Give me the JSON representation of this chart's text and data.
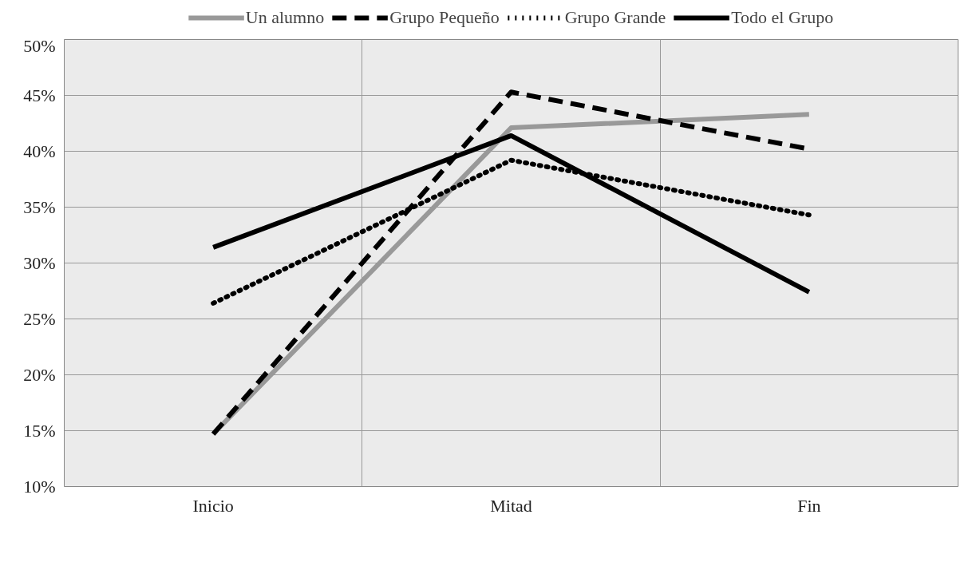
{
  "chart_data": {
    "type": "line",
    "categories": [
      "Inicio",
      "Mitad",
      "Fin"
    ],
    "series": [
      {
        "name": "Un alumno",
        "color": "#999999",
        "line_style": "solid",
        "values": [
          14.7,
          42.1,
          43.3
        ]
      },
      {
        "name": "Grupo Pequeño",
        "color": "#000000",
        "line_style": "dashed",
        "values": [
          14.7,
          45.3,
          40.2
        ]
      },
      {
        "name": "Grupo Grande",
        "color": "#000000",
        "line_style": "dotted",
        "values": [
          26.4,
          39.2,
          34.3
        ]
      },
      {
        "name": "Todo el Grupo",
        "color": "#000000",
        "line_style": "solid",
        "values": [
          31.4,
          41.4,
          27.4
        ]
      }
    ],
    "ylim": [
      10,
      50
    ],
    "yticks": [
      {
        "value": 10,
        "label": "10%"
      },
      {
        "value": 15,
        "label": "15%"
      },
      {
        "value": 20,
        "label": "20%"
      },
      {
        "value": 25,
        "label": "25%"
      },
      {
        "value": 30,
        "label": "30%"
      },
      {
        "value": 35,
        "label": "35%"
      },
      {
        "value": 40,
        "label": "40%"
      },
      {
        "value": 45,
        "label": "45%"
      },
      {
        "value": 50,
        "label": "50%"
      }
    ],
    "grid": true,
    "legend": "top",
    "marker": "none"
  }
}
